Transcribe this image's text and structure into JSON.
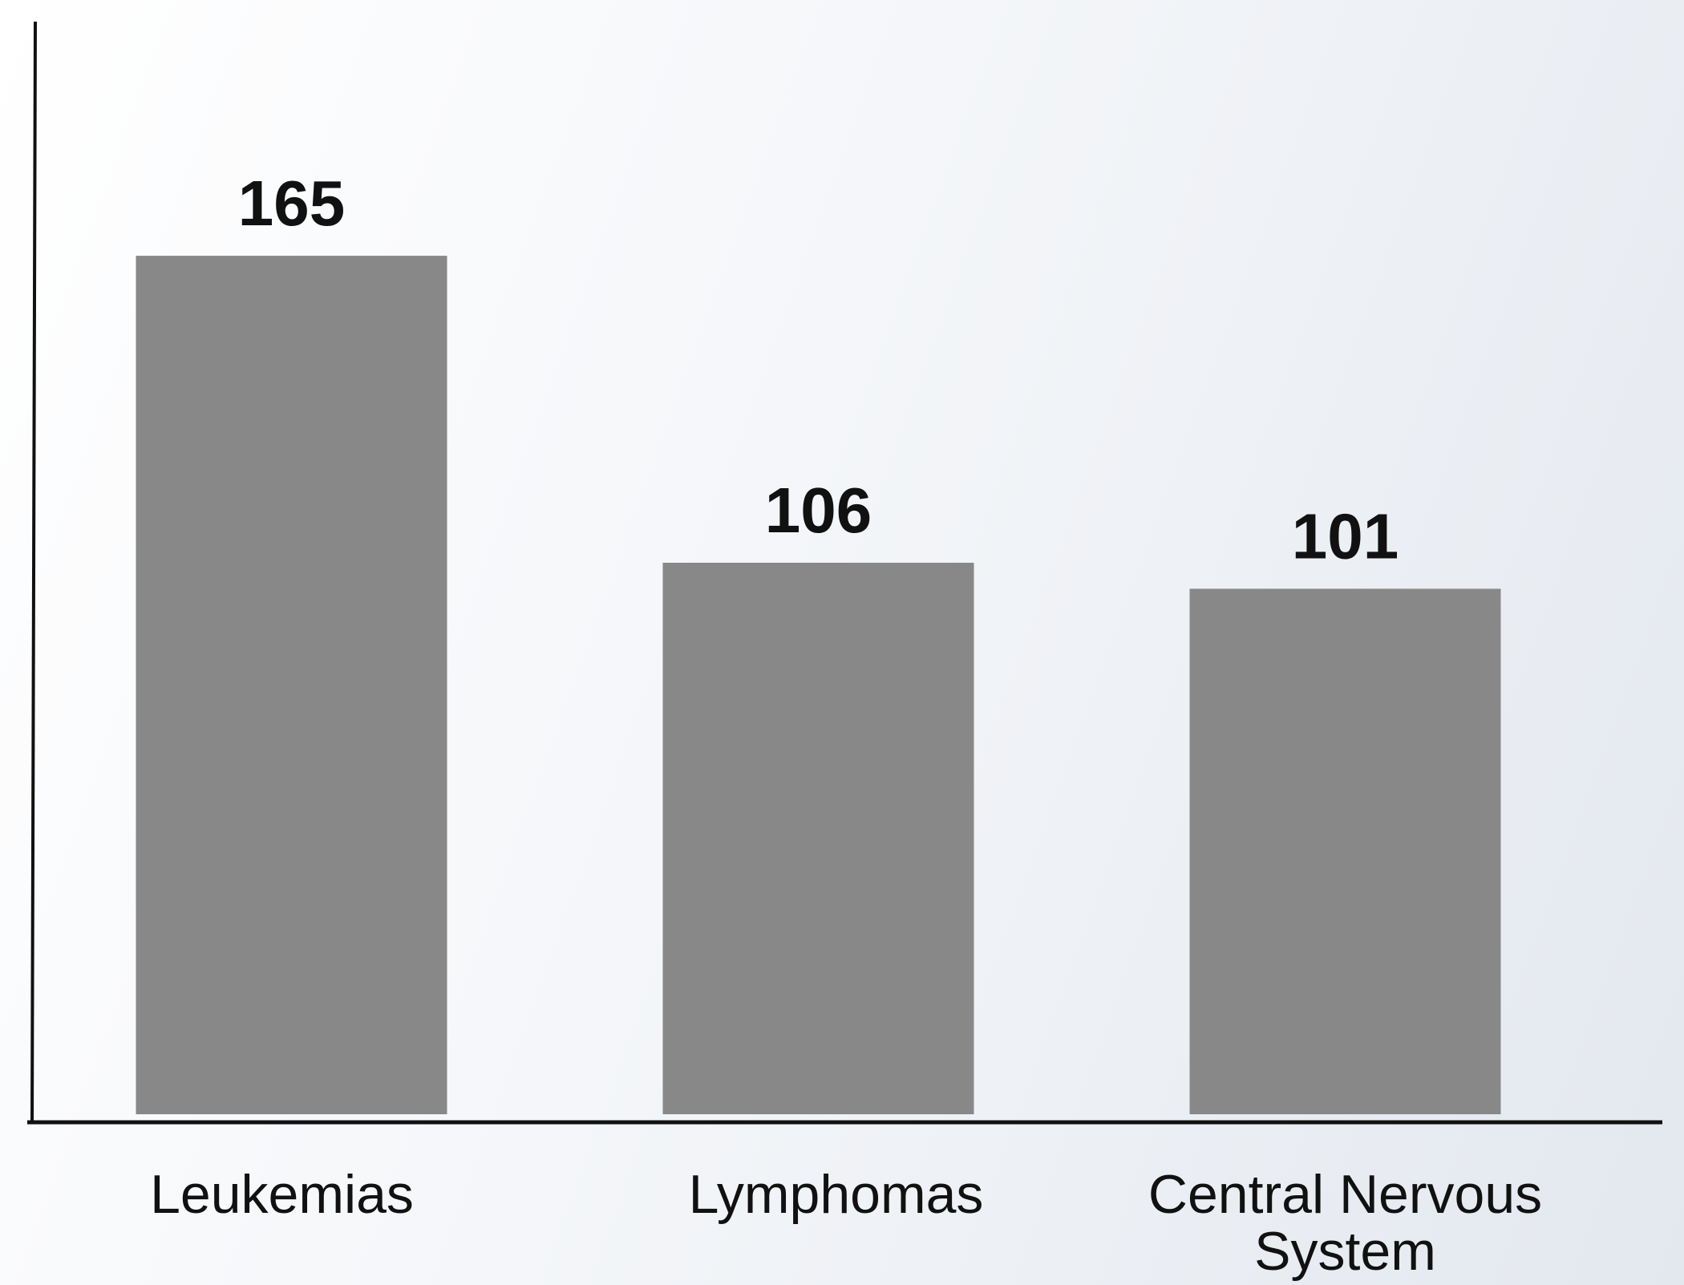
{
  "chart_data": {
    "type": "bar",
    "categories": [
      "Leukemias",
      "Lymphomas",
      "Central Nervous System"
    ],
    "values": [
      165,
      106,
      101
    ],
    "color": "#888888",
    "ylim": [
      0,
      210
    ]
  }
}
